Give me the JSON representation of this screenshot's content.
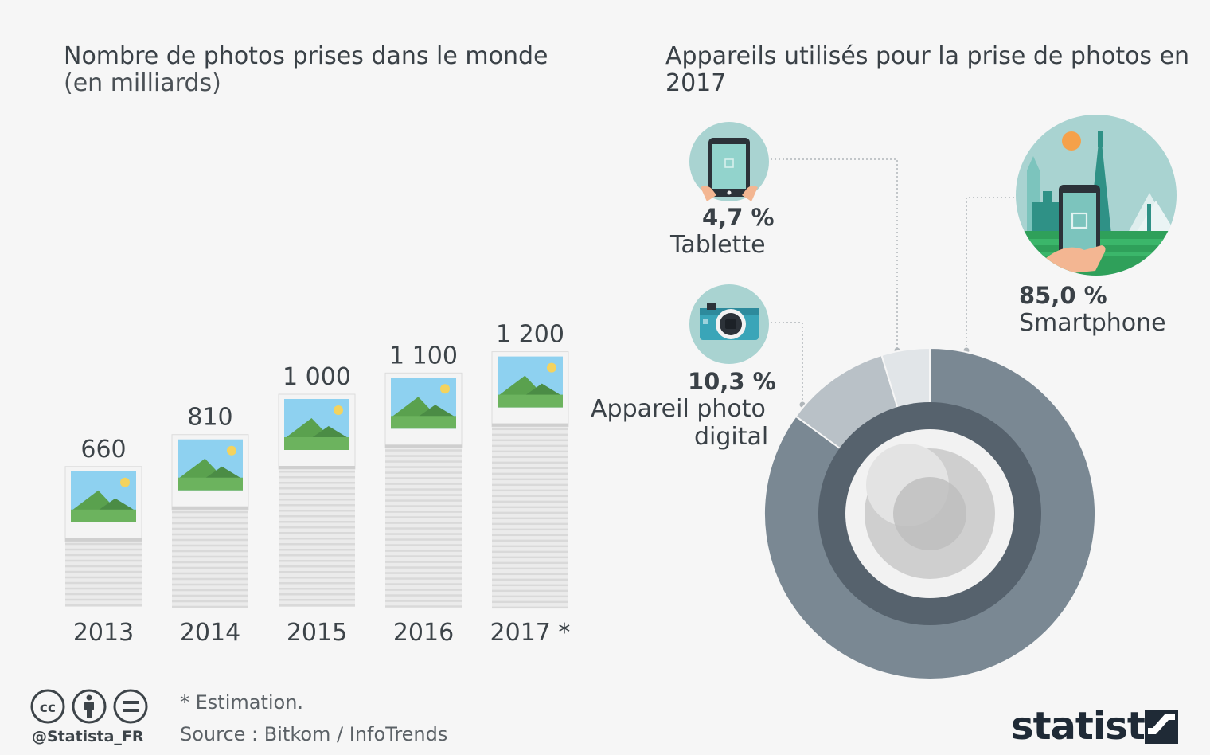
{
  "left_chart": {
    "title": "Nombre de photos prises dans le monde",
    "subtitle": "(en milliards)"
  },
  "right_chart": {
    "title": "Appareils utilisés pour la prise de photos en 2017"
  },
  "chart_data": [
    {
      "type": "bar",
      "title": "Nombre de photos prises dans le monde",
      "subtitle": "(en milliards)",
      "categories": [
        "2013",
        "2014",
        "2015",
        "2016",
        "2017 *"
      ],
      "values": [
        660,
        810,
        1000,
        1100,
        1200
      ],
      "value_labels": [
        "660",
        "810",
        "1 000",
        "1 100",
        "1 200"
      ],
      "grid": false
    },
    {
      "type": "pie",
      "style": "donut",
      "title": "Appareils utilisés pour la prise de photos en 2017",
      "slices": [
        {
          "label": "Smartphone",
          "pct_label": "85,0 %",
          "value": 85.0,
          "color": "#7a8893"
        },
        {
          "label": "Appareil photo digital",
          "pct_label": "10,3 %",
          "value": 10.3,
          "color": "#b9c1c7"
        },
        {
          "label": "Tablette",
          "pct_label": "4,7 %",
          "value": 4.7,
          "color": "#e1e5e8"
        }
      ]
    }
  ],
  "labels": {
    "tablet_pct": "4,7 %",
    "tablet_name": "Tablette",
    "camera_pct": "10,3 %",
    "camera_name_line1": "Appareil photo",
    "camera_name_line2": "digital",
    "phone_pct": "85,0 %",
    "phone_name": "Smartphone"
  },
  "icons": {
    "tablet": "tablet-in-hands-icon",
    "camera": "digital-camera-icon",
    "smartphone": "smartphone-city-icon",
    "thumbnail": "landscape-photo-icon",
    "license": [
      "creative-commons-icon",
      "attribution-icon",
      "no-derivatives-icon"
    ]
  },
  "footer": {
    "note": "* Estimation.",
    "source": "Source : Bitkom / InfoTrends",
    "handle": "@Statista_FR",
    "brand": "statista"
  },
  "colors": {
    "donut_outer": "#7a8893",
    "donut_ring": "#56626d",
    "icon_bg": "#a9d3d1",
    "sky": "#8ed1f0",
    "grass": "#6cb35e",
    "sun": "#f4d35e"
  }
}
